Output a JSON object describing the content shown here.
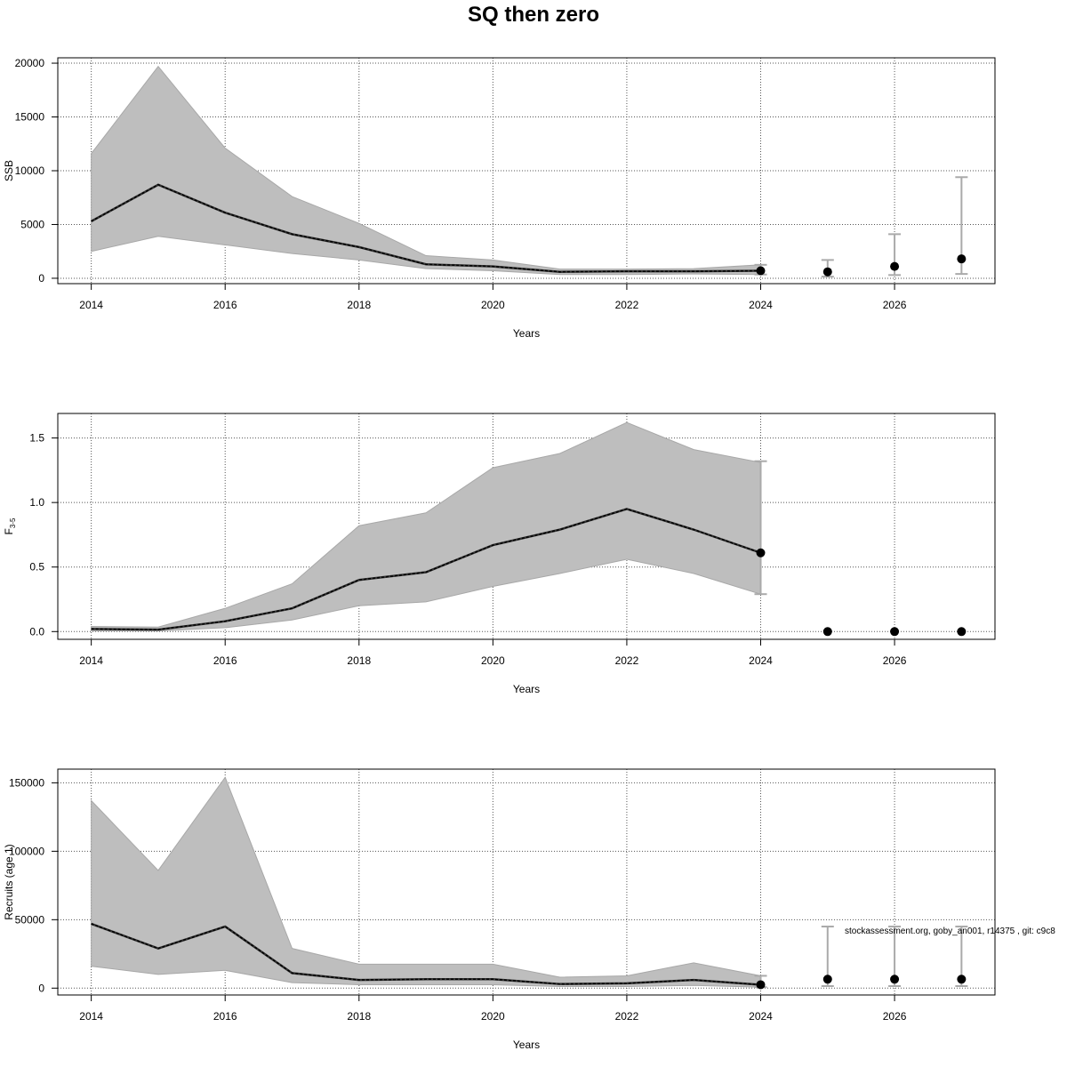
{
  "chart_data": {
    "title": "SQ then zero",
    "footnote": "stockassessment.org, goby_an001, r14375 , git: c9c8",
    "panels": [
      {
        "type": "line",
        "ylabel": "SSB",
        "xlabel": "Years",
        "xlim": [
          2013.5,
          2027.5
        ],
        "ylim": [
          -500,
          20500
        ],
        "xticks": [
          2014,
          2016,
          2018,
          2020,
          2022,
          2024,
          2026
        ],
        "yticks": [
          0,
          5000,
          10000,
          15000,
          20000
        ],
        "grid": true,
        "estimate": {
          "x": [
            2014,
            2015,
            2016,
            2017,
            2018,
            2019,
            2020,
            2021,
            2022,
            2023,
            2024
          ],
          "y": [
            5300,
            8700,
            6100,
            4100,
            2900,
            1300,
            1100,
            600,
            650,
            650,
            700
          ],
          "lower": [
            2500,
            3900,
            3100,
            2300,
            1700,
            900,
            700,
            350,
            350,
            400,
            350
          ],
          "upper": [
            11600,
            19700,
            12100,
            7600,
            5100,
            2100,
            1700,
            850,
            850,
            900,
            1250
          ]
        },
        "forecast": {
          "x": [
            2024,
            2025,
            2026,
            2027
          ],
          "y": [
            700,
            600,
            1100,
            1800
          ],
          "lower": [
            350,
            150,
            300,
            400
          ],
          "upper": [
            1250,
            1700,
            4100,
            9400
          ]
        }
      },
      {
        "type": "line",
        "ylabel": "F",
        "ylabel_sub": "3-5",
        "xlabel": "Years",
        "xlim": [
          2013.5,
          2027.5
        ],
        "ylim": [
          -0.06,
          1.69
        ],
        "xticks": [
          2014,
          2016,
          2018,
          2020,
          2022,
          2024,
          2026
        ],
        "yticks": [
          0.0,
          0.5,
          1.0,
          1.5
        ],
        "grid": true,
        "estimate": {
          "x": [
            2014,
            2015,
            2016,
            2017,
            2018,
            2019,
            2020,
            2021,
            2022,
            2023,
            2024
          ],
          "y": [
            0.02,
            0.015,
            0.08,
            0.18,
            0.4,
            0.46,
            0.67,
            0.79,
            0.95,
            0.79,
            0.61
          ],
          "lower": [
            0.005,
            0.005,
            0.03,
            0.09,
            0.2,
            0.23,
            0.35,
            0.45,
            0.56,
            0.45,
            0.29
          ],
          "upper": [
            0.04,
            0.035,
            0.18,
            0.37,
            0.82,
            0.92,
            1.27,
            1.38,
            1.62,
            1.41,
            1.31
          ]
        },
        "forecast": {
          "x": [
            2024,
            2025,
            2026,
            2027
          ],
          "y": [
            0.61,
            0,
            0,
            0
          ],
          "lower": [
            0.29,
            0,
            0,
            0
          ],
          "upper": [
            1.32,
            0,
            0,
            0
          ]
        }
      },
      {
        "type": "line",
        "ylabel": "Recruits (age 1)",
        "xlabel": "Years",
        "xlim": [
          2013.5,
          2027.5
        ],
        "ylim": [
          -5000,
          160000
        ],
        "xticks": [
          2014,
          2016,
          2018,
          2020,
          2022,
          2024,
          2026
        ],
        "yticks": [
          0,
          50000,
          100000,
          150000
        ],
        "grid": true,
        "estimate": {
          "x": [
            2014,
            2015,
            2016,
            2017,
            2018,
            2019,
            2020,
            2021,
            2022,
            2023,
            2024
          ],
          "y": [
            47000,
            29000,
            45000,
            11000,
            6000,
            6500,
            6500,
            3000,
            3500,
            6000,
            2500
          ],
          "lower": [
            16000,
            10000,
            13000,
            4000,
            2500,
            2500,
            2500,
            1200,
            1200,
            2000,
            700
          ],
          "upper": [
            137000,
            86000,
            154000,
            29000,
            17500,
            17500,
            17500,
            8000,
            9000,
            18500,
            9000
          ]
        },
        "forecast": {
          "x": [
            2024,
            2025,
            2026,
            2027
          ],
          "y": [
            2500,
            6500,
            6500,
            6500
          ],
          "lower": [
            700,
            1500,
            1500,
            1500
          ],
          "upper": [
            9000,
            45000,
            45000,
            45000
          ]
        }
      }
    ]
  }
}
